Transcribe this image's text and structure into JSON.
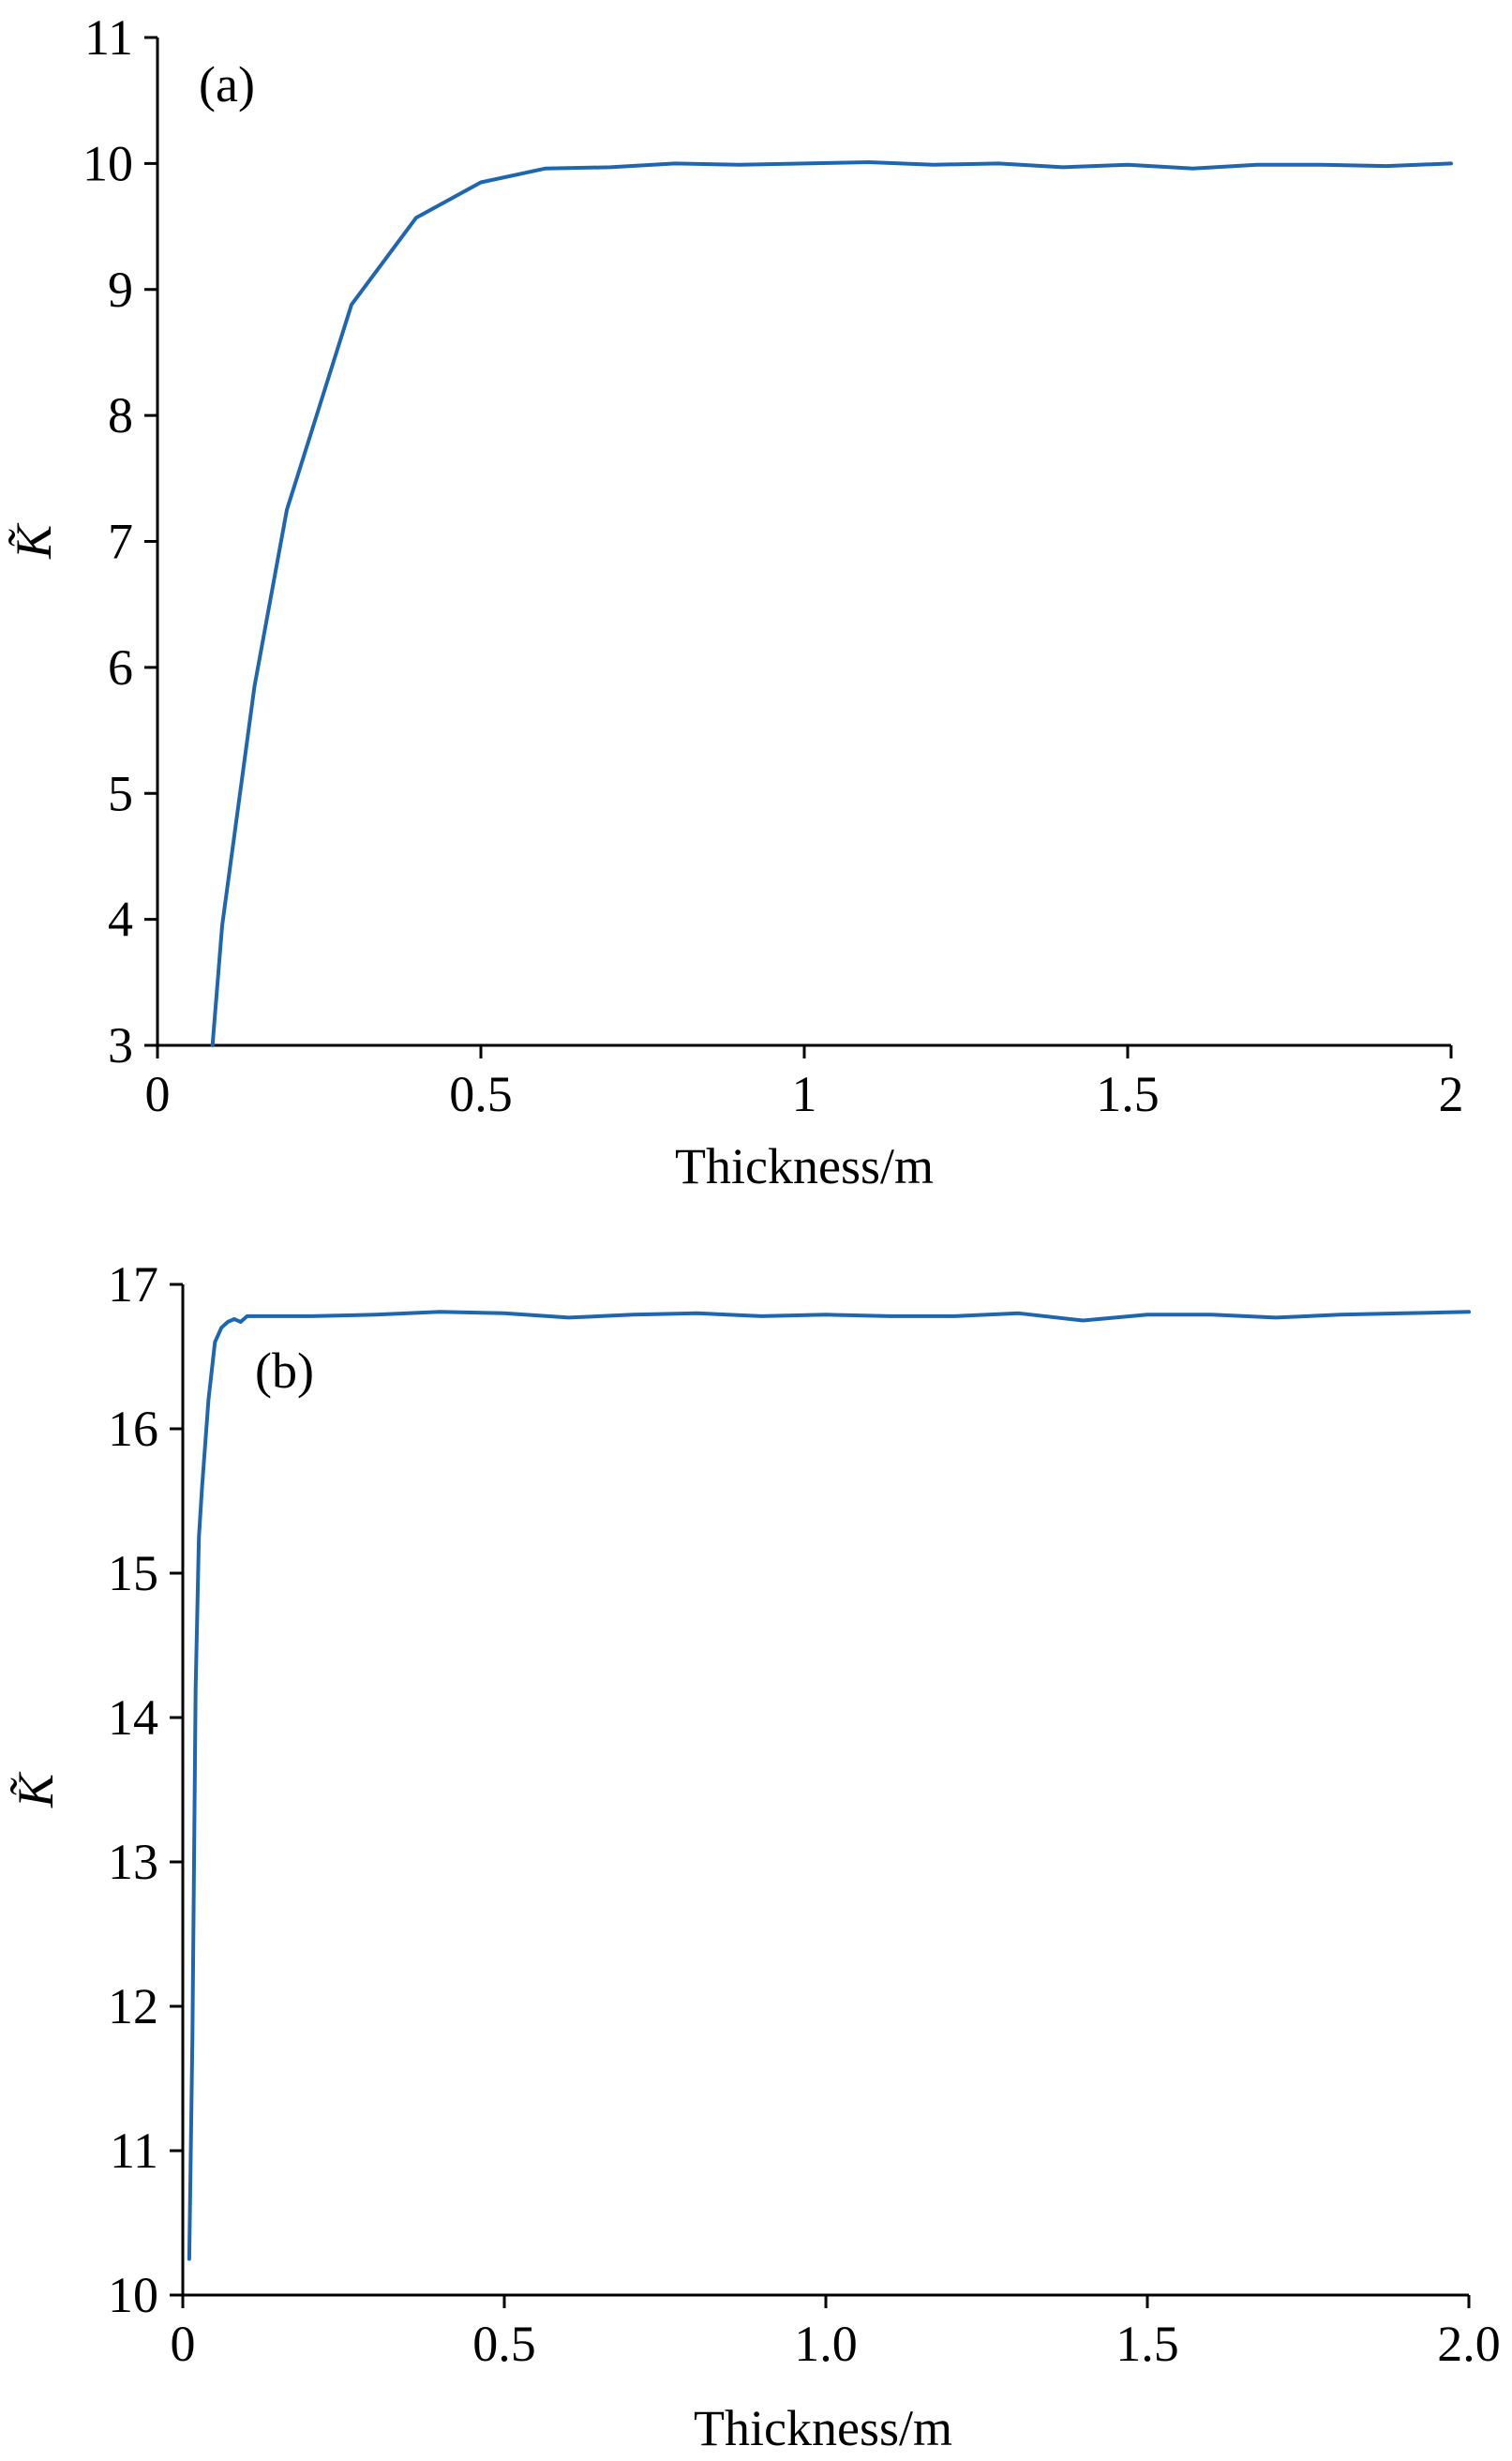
{
  "chart_data": [
    {
      "type": "line",
      "panel_label": "(a)",
      "xlabel": "Thickness/m",
      "ylabel": "K̃",
      "xlim": [
        0,
        2
      ],
      "ylim": [
        3,
        11
      ],
      "x_ticks": [
        "0",
        "0.5",
        "1",
        "1.5",
        "2"
      ],
      "x_tick_values": [
        0,
        0.5,
        1,
        1.5,
        2
      ],
      "y_ticks": [
        "3",
        "4",
        "5",
        "6",
        "7",
        "8",
        "9",
        "10",
        "11"
      ],
      "y_tick_values": [
        3,
        4,
        5,
        6,
        7,
        8,
        9,
        10,
        11
      ],
      "grid": false,
      "color": "#1f66b0",
      "series": [
        {
          "x": [
            0.085,
            0.1,
            0.15,
            0.2,
            0.3,
            0.4,
            0.5,
            0.6,
            0.7,
            0.8,
            0.9,
            1.0,
            1.1,
            1.2,
            1.3,
            1.4,
            1.5,
            1.6,
            1.7,
            1.8,
            1.9,
            2.0
          ],
          "y": [
            3.0,
            3.95,
            5.85,
            7.25,
            8.88,
            9.57,
            9.85,
            9.96,
            9.97,
            10.0,
            9.99,
            10.0,
            10.01,
            9.99,
            10.0,
            9.97,
            9.99,
            9.96,
            9.99,
            9.99,
            9.98,
            10.0
          ]
        }
      ]
    },
    {
      "type": "line",
      "panel_label": "(b)",
      "xlabel": "Thickness/m",
      "ylabel": "K̃",
      "xlim": [
        0,
        2
      ],
      "ylim": [
        10,
        17
      ],
      "x_ticks": [
        "0",
        "0.5",
        "1.0",
        "1.5",
        "2.0"
      ],
      "x_tick_values": [
        0,
        0.5,
        1.0,
        1.5,
        2.0
      ],
      "y_ticks": [
        "10",
        "11",
        "12",
        "13",
        "14",
        "15",
        "16",
        "17"
      ],
      "y_tick_values": [
        10,
        11,
        12,
        13,
        14,
        15,
        16,
        17
      ],
      "grid": false,
      "color": "#1f66b0",
      "series": [
        {
          "x": [
            0.01,
            0.015,
            0.02,
            0.025,
            0.03,
            0.04,
            0.05,
            0.06,
            0.07,
            0.08,
            0.09,
            0.1,
            0.2,
            0.3,
            0.4,
            0.5,
            0.6,
            0.7,
            0.8,
            0.9,
            1.0,
            1.1,
            1.2,
            1.3,
            1.4,
            1.5,
            1.6,
            1.7,
            1.8,
            1.9,
            2.0
          ],
          "y": [
            10.25,
            11.8,
            14.2,
            15.25,
            15.6,
            16.2,
            16.6,
            16.7,
            16.74,
            16.76,
            16.74,
            16.78,
            16.78,
            16.79,
            16.81,
            16.8,
            16.77,
            16.79,
            16.8,
            16.78,
            16.79,
            16.78,
            16.78,
            16.8,
            16.75,
            16.79,
            16.79,
            16.77,
            16.79,
            16.8,
            16.81
          ]
        }
      ]
    }
  ]
}
